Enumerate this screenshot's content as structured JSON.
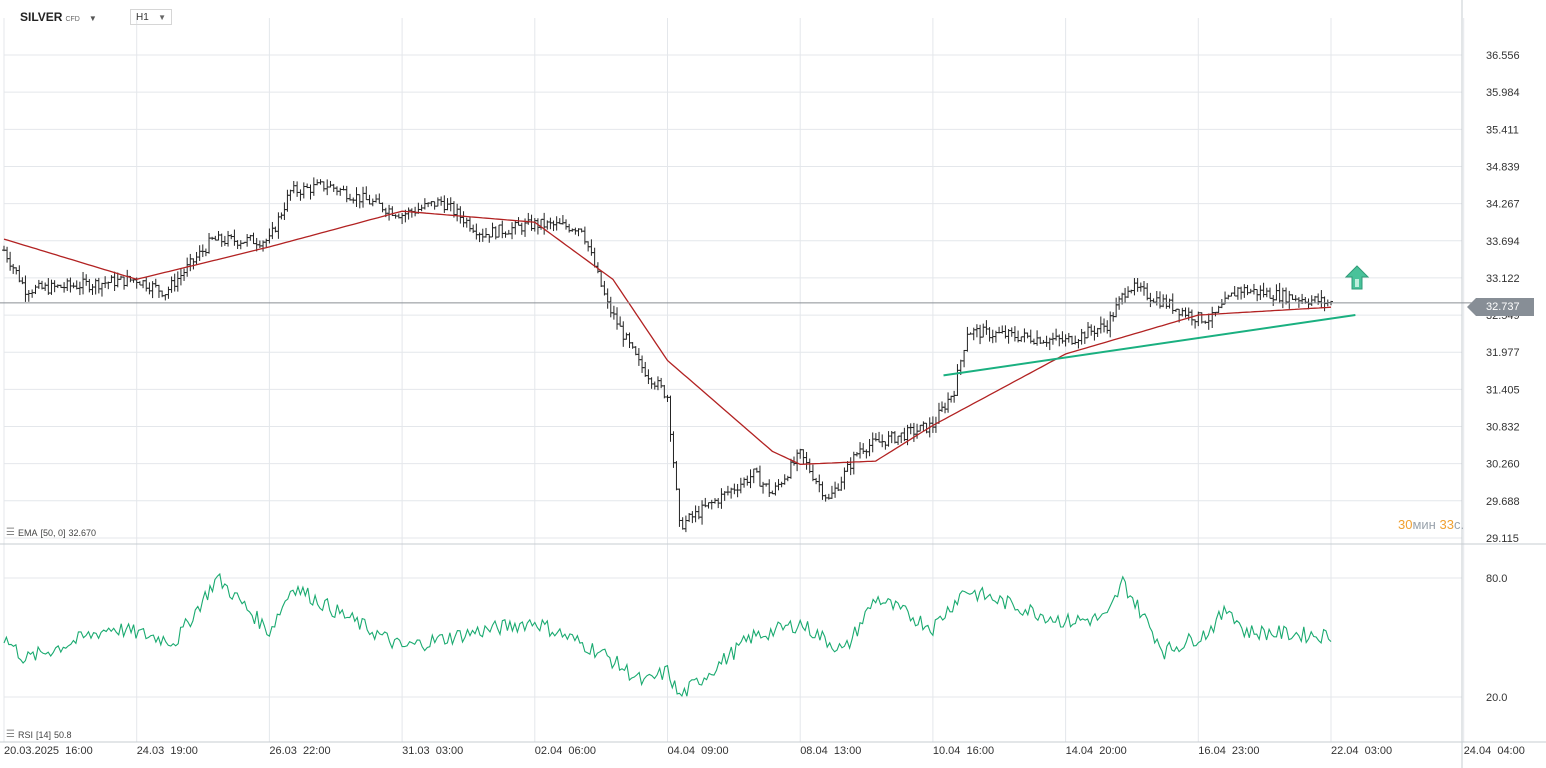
{
  "header": {
    "symbol": "SILVER",
    "symbol_suffix": "CFD",
    "timeframe": "H1"
  },
  "indicators": {
    "ema_label": "EMA",
    "ema_params": "[50, 0]",
    "ema_value": "32.670",
    "rsi_label": "RSI",
    "rsi_params": "[14]",
    "rsi_value": "50.8"
  },
  "price_scale": {
    "ticks": [
      "36.556",
      "35.984",
      "35.411",
      "34.839",
      "34.267",
      "33.694",
      "33.122",
      "32.549",
      "31.977",
      "31.405",
      "30.832",
      "30.260",
      "29.688",
      "29.115"
    ],
    "current_price": "32.737"
  },
  "rsi_scale": {
    "ticks": [
      "80.0",
      "20.0"
    ]
  },
  "time_axis": {
    "labels": [
      "20.03.2025  16:00",
      "24.03  19:00",
      "26.03  22:00",
      "31.03  03:00",
      "02.04  06:00",
      "04.04  09:00",
      "08.04  13:00",
      "10.04  16:00",
      "14.04  20:00",
      "16.04  23:00",
      "22.04  03:00",
      "24.04  04:00"
    ]
  },
  "candle_timer": {
    "minutes": "30",
    "minutes_unit": "мин",
    "seconds": "33",
    "seconds_unit": "с."
  },
  "colors": {
    "candles": "#222222",
    "ema": "#b22222",
    "rsi": "#1aaa70",
    "trendline": "#1ab080",
    "arrow": "#49c29a",
    "grid": "#e4e7eb",
    "current_price_line": "#8a8f95"
  },
  "chart_data": [
    {
      "type": "ohlc",
      "instrument": "SILVER",
      "interval": "H1",
      "y_range": [
        29.115,
        36.8
      ],
      "price_path_keypoints": [
        {
          "time": "20.03 16:00",
          "close": 33.55
        },
        {
          "time": "21.03 08:00",
          "close": 32.95
        },
        {
          "time": "21.03 18:00",
          "close": 32.95
        },
        {
          "time": "24.03 19:00",
          "close": 33.1
        },
        {
          "time": "25.03 06:00",
          "close": 32.9
        },
        {
          "time": "26.03 00:00",
          "close": 33.7
        },
        {
          "time": "26.03 22:00",
          "close": 33.7
        },
        {
          "time": "27.03 14:00",
          "close": 34.45
        },
        {
          "time": "28.03 18:00",
          "close": 34.55
        },
        {
          "time": "31.03 03:00",
          "close": 34.1
        },
        {
          "time": "31.03 18:00",
          "close": 34.3
        },
        {
          "time": "01.04 10:00",
          "close": 33.8
        },
        {
          "time": "02.04 06:00",
          "close": 33.95
        },
        {
          "time": "03.04 00:00",
          "close": 33.9
        },
        {
          "time": "03.04 10:00",
          "close": 32.7
        },
        {
          "time": "03.04 22:00",
          "close": 31.8
        },
        {
          "time": "04.04 09:00",
          "close": 31.3
        },
        {
          "time": "04.04 18:00",
          "close": 29.3
        },
        {
          "time": "07.04 02:00",
          "close": 30.1
        },
        {
          "time": "07.04 16:00",
          "close": 29.8
        },
        {
          "time": "08.04 13:00",
          "close": 30.4
        },
        {
          "time": "09.04 00:00",
          "close": 29.7
        },
        {
          "time": "09.04 12:00",
          "close": 30.5
        },
        {
          "time": "10.04 16:00",
          "close": 30.85
        },
        {
          "time": "11.04 08:00",
          "close": 31.4
        },
        {
          "time": "11.04 18:00",
          "close": 32.3
        },
        {
          "time": "14.04 20:00",
          "close": 32.15
        },
        {
          "time": "15.04 12:00",
          "close": 32.4
        },
        {
          "time": "15.04 20:00",
          "close": 33.0
        },
        {
          "time": "16.04 23:00",
          "close": 32.5
        },
        {
          "time": "17.04 12:00",
          "close": 32.5
        },
        {
          "time": "18.04 12:00",
          "close": 32.95
        },
        {
          "time": "22.04 03:00",
          "close": 32.737
        }
      ]
    },
    {
      "type": "line",
      "series_label": "EMA [50, 0]",
      "last_value": 32.67,
      "keypoints": [
        {
          "time": "20.03 16:00",
          "value": 33.72
        },
        {
          "time": "24.03 19:00",
          "value": 33.1
        },
        {
          "time": "26.03 22:00",
          "value": 33.6
        },
        {
          "time": "31.03 03:00",
          "value": 34.15
        },
        {
          "time": "02.04 06:00",
          "value": 33.98
        },
        {
          "time": "03.04 12:00",
          "value": 33.1
        },
        {
          "time": "04.04 09:00",
          "value": 31.85
        },
        {
          "time": "07.04 16:00",
          "value": 30.45
        },
        {
          "time": "08.04 13:00",
          "value": 30.25
        },
        {
          "time": "09.04 18:00",
          "value": 30.3
        },
        {
          "time": "10.04 16:00",
          "value": 30.85
        },
        {
          "time": "14.04 20:00",
          "value": 31.95
        },
        {
          "time": "16.04 23:00",
          "value": 32.55
        },
        {
          "time": "22.04 03:00",
          "value": 32.67
        }
      ]
    },
    {
      "type": "line",
      "series_label": "RSI [14]",
      "last_value": 50.8,
      "y_ticks": [
        80.0,
        20.0
      ],
      "keypoints": [
        {
          "time": "20.03 16:00",
          "value": 50
        },
        {
          "time": "21.03 08:00",
          "value": 39
        },
        {
          "time": "24.03 00:00",
          "value": 55
        },
        {
          "time": "25.03 10:00",
          "value": 48
        },
        {
          "time": "26.03 02:00",
          "value": 80
        },
        {
          "time": "26.03 22:00",
          "value": 53
        },
        {
          "time": "27.03 16:00",
          "value": 76
        },
        {
          "time": "28.03 20:00",
          "value": 65
        },
        {
          "time": "31.03 03:00",
          "value": 45
        },
        {
          "time": "01.04 08:00",
          "value": 53
        },
        {
          "time": "02.04 06:00",
          "value": 58
        },
        {
          "time": "03.04 08:00",
          "value": 42
        },
        {
          "time": "04.04 00:00",
          "value": 27
        },
        {
          "time": "04.04 09:00",
          "value": 33
        },
        {
          "time": "04.04 18:00",
          "value": 20
        },
        {
          "time": "07.04 00:00",
          "value": 50
        },
        {
          "time": "08.04 13:00",
          "value": 57
        },
        {
          "time": "09.04 06:00",
          "value": 43
        },
        {
          "time": "09.04 18:00",
          "value": 70
        },
        {
          "time": "10.04 16:00",
          "value": 55
        },
        {
          "time": "11.04 16:00",
          "value": 74
        },
        {
          "time": "14.04 20:00",
          "value": 58
        },
        {
          "time": "15.04 12:00",
          "value": 60
        },
        {
          "time": "15.04 18:00",
          "value": 78
        },
        {
          "time": "16.04 10:00",
          "value": 43
        },
        {
          "time": "17.04 06:00",
          "value": 52
        },
        {
          "time": "18.04 04:00",
          "value": 65
        },
        {
          "time": "18.04 18:00",
          "value": 53
        },
        {
          "time": "22.04 03:00",
          "value": 50.8
        }
      ]
    }
  ]
}
